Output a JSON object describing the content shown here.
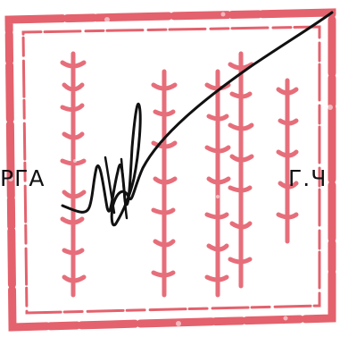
{
  "document": {
    "text_left": "РГА",
    "text_right": "Г.Ч"
  },
  "seal": {
    "ink_color": "#e0525e",
    "shape": "square-stamp",
    "script": "traditional-mongolian-vertical"
  },
  "signature": {
    "ink_color": "#111111"
  }
}
